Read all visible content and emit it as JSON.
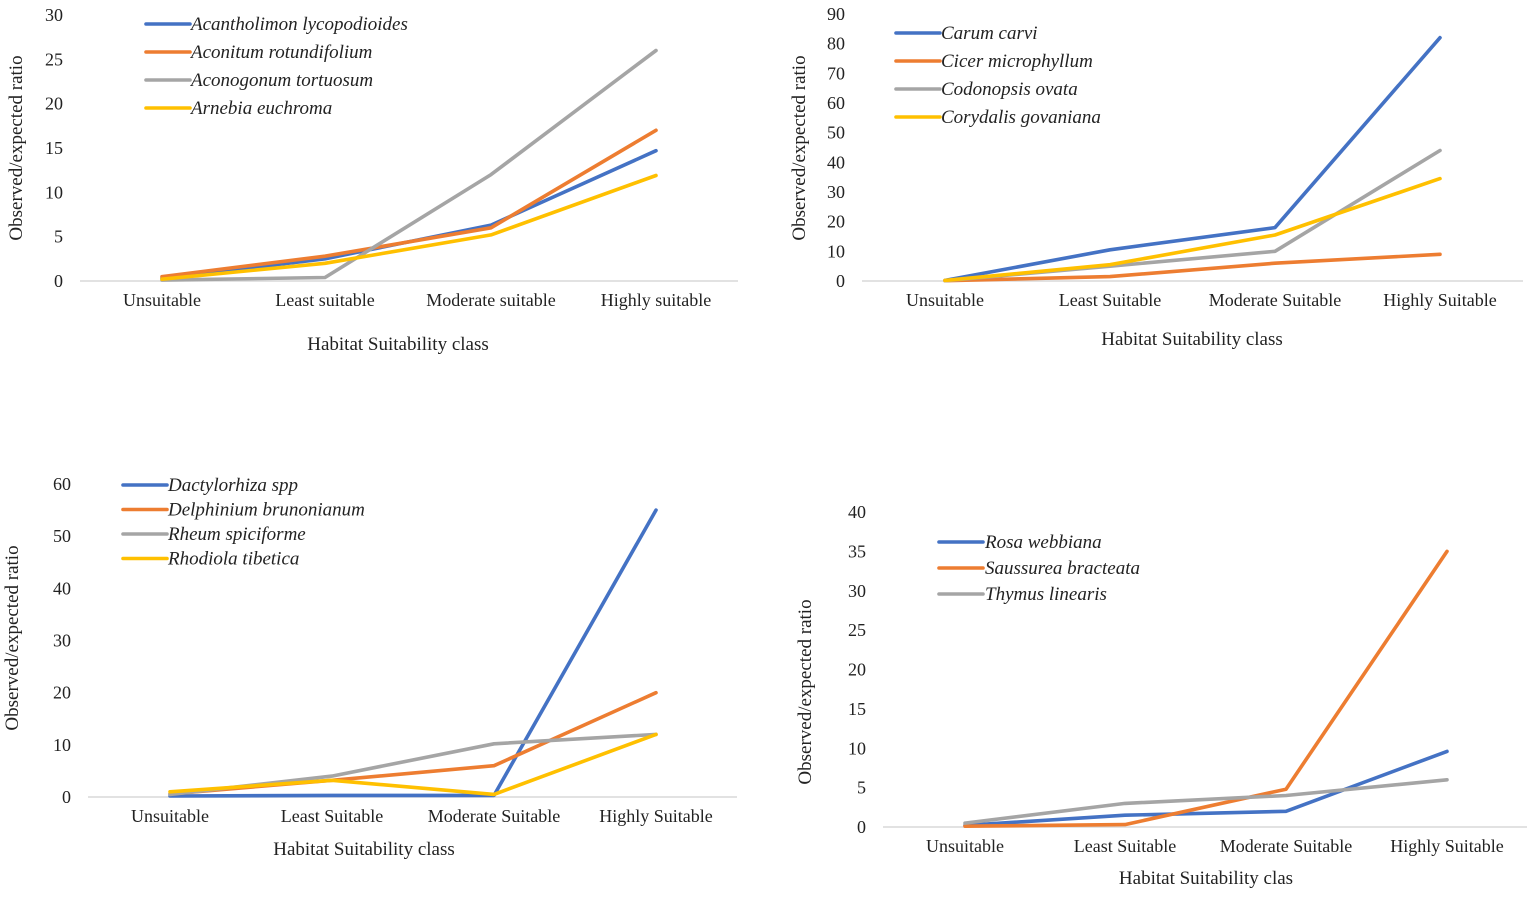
{
  "chart_data": [
    {
      "type": "line",
      "title": "",
      "xlabel": "Habitat Suitability class",
      "ylabel": "Observed/expected ratio",
      "categories": [
        "Unsuitable",
        "Least suitable",
        "Moderate suitable",
        "Highly suitable"
      ],
      "ylim": [
        0,
        30
      ],
      "yticks": [
        0,
        5,
        10,
        15,
        20,
        25,
        30
      ],
      "legend_position": "top-left",
      "series": [
        {
          "name": "Acantholimon lycopodioides",
          "color": "#4472C4",
          "values": [
            0.3,
            2.5,
            6.3,
            14.7
          ]
        },
        {
          "name": "Aconitum rotundifolium",
          "color": "#ED7D31",
          "values": [
            0.5,
            2.8,
            6.0,
            17.0
          ]
        },
        {
          "name": "Aconogonum tortuosum",
          "color": "#A5A5A5",
          "values": [
            0.1,
            0.4,
            12.0,
            26.0
          ]
        },
        {
          "name": "Arnebia euchroma",
          "color": "#FFC000",
          "values": [
            0.2,
            2.0,
            5.2,
            11.9
          ]
        }
      ]
    },
    {
      "type": "line",
      "title": "",
      "xlabel": "Habitat Suitability class",
      "ylabel": "Observed/expected ratio",
      "categories": [
        "Unsuitable",
        "Least Suitable",
        "Moderate Suitable",
        "Highly Suitable"
      ],
      "ylim": [
        0,
        90
      ],
      "yticks": [
        0,
        10,
        20,
        30,
        40,
        50,
        60,
        70,
        80,
        90
      ],
      "legend_position": "top-left",
      "series": [
        {
          "name": "Carum carvi",
          "color": "#4472C4",
          "values": [
            0.2,
            10.5,
            18.0,
            82.0
          ]
        },
        {
          "name": "Cicer microphyllum",
          "color": "#ED7D31",
          "values": [
            0.1,
            1.5,
            6.0,
            9.0
          ]
        },
        {
          "name": "Codonopsis ovata",
          "color": "#A5A5A5",
          "values": [
            0.1,
            5.0,
            10.0,
            44.0
          ]
        },
        {
          "name": "Corydalis govaniana",
          "color": "#FFC000",
          "values": [
            0.2,
            5.5,
            15.5,
            34.5
          ]
        }
      ]
    },
    {
      "type": "line",
      "title": "",
      "xlabel": "Habitat Suitability class",
      "ylabel": "Observed/expected ratio",
      "categories": [
        "Unsuitable",
        "Least Suitable",
        "Moderate Suitable",
        "Highly Suitable"
      ],
      "ylim": [
        0,
        60
      ],
      "yticks": [
        0,
        10,
        20,
        30,
        40,
        50,
        60
      ],
      "legend_position": "top-left",
      "series": [
        {
          "name": "Dactylorhiza spp",
          "color": "#4472C4",
          "values": [
            0.2,
            0.3,
            0.3,
            55.0
          ]
        },
        {
          "name": "Delphinium brunonianum",
          "color": "#ED7D31",
          "values": [
            0.6,
            3.2,
            6.0,
            20.0
          ]
        },
        {
          "name": "Rheum spiciforme",
          "color": "#A5A5A5",
          "values": [
            0.5,
            4.0,
            10.2,
            12.0
          ]
        },
        {
          "name": "Rhodiola tibetica",
          "color": "#FFC000",
          "values": [
            1.0,
            3.2,
            0.5,
            12.0
          ]
        }
      ]
    },
    {
      "type": "line",
      "title": "",
      "xlabel": "Habitat Suitability clas",
      "ylabel": "Observed/expected ratio",
      "categories": [
        "Unsuitable",
        "Least Suitable",
        "Moderate Suitable",
        "Highly Suitable"
      ],
      "ylim": [
        0,
        40
      ],
      "yticks": [
        0,
        5,
        10,
        15,
        20,
        25,
        30,
        35,
        40
      ],
      "legend_position": "top-left",
      "series": [
        {
          "name": "Rosa webbiana",
          "color": "#4472C4",
          "values": [
            0.2,
            1.5,
            2.0,
            9.6
          ]
        },
        {
          "name": "Saussurea bracteata",
          "color": "#ED7D31",
          "values": [
            0.1,
            0.3,
            4.8,
            35.0
          ]
        },
        {
          "name": "Thymus linearis",
          "color": "#A5A5A5",
          "values": [
            0.5,
            3.0,
            4.0,
            6.0
          ]
        }
      ]
    }
  ]
}
